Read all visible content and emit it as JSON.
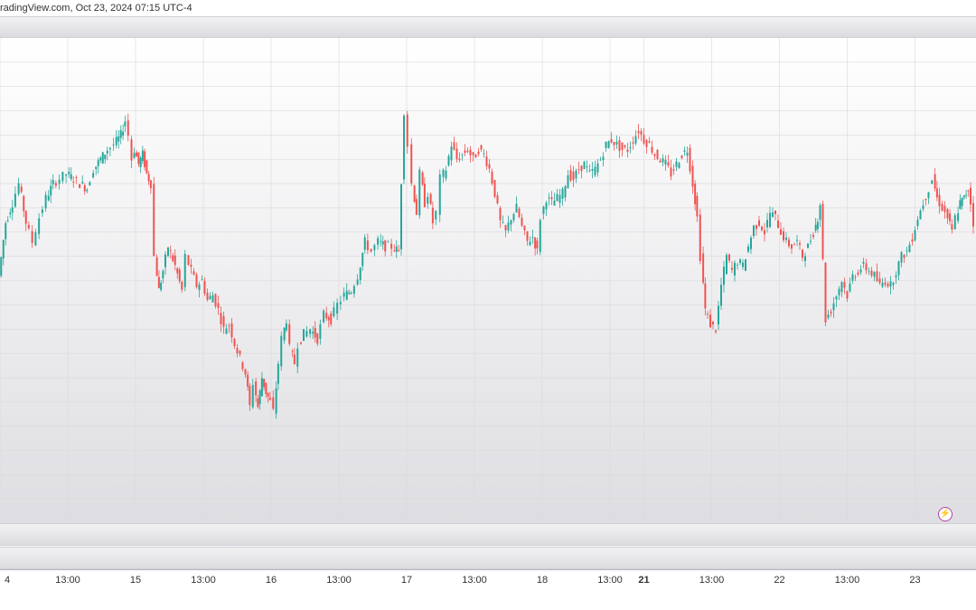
{
  "header": {
    "source_text": "radingView.com, Oct 23, 2024 07:15 UTC-4"
  },
  "colors": {
    "up": "#26a69a",
    "down": "#ef5350",
    "grid": "#d9d9de"
  },
  "icons": {
    "lightning": "lightning-icon"
  },
  "chart_data": {
    "type": "candlestick",
    "title": "",
    "xlabel": "",
    "ylabel": "",
    "ylim": [
      0,
      100
    ],
    "grid": true,
    "x_ticks": [
      {
        "label": "4",
        "x": 0,
        "bold": false
      },
      {
        "label": "13:00",
        "x": 0.5,
        "bold": false
      },
      {
        "label": "15",
        "x": 1,
        "bold": false
      },
      {
        "label": "13:00",
        "x": 1.5,
        "bold": false
      },
      {
        "label": "16",
        "x": 2,
        "bold": false
      },
      {
        "label": "13:00",
        "x": 2.5,
        "bold": false
      },
      {
        "label": "17",
        "x": 3,
        "bold": false
      },
      {
        "label": "13:00",
        "x": 3.5,
        "bold": false
      },
      {
        "label": "18",
        "x": 4,
        "bold": false
      },
      {
        "label": "13:00",
        "x": 4.5,
        "bold": false
      },
      {
        "label": "21",
        "x": 4.75,
        "bold": true
      },
      {
        "label": "13:00",
        "x": 5.25,
        "bold": false
      },
      {
        "label": "22",
        "x": 5.75,
        "bold": false
      },
      {
        "label": "13:00",
        "x": 6.25,
        "bold": false
      },
      {
        "label": "23",
        "x": 6.75,
        "bold": false
      }
    ],
    "series": [
      {
        "values": [
          {
            "x": 0.0,
            "y": 51
          },
          {
            "x": 0.05,
            "y": 62
          },
          {
            "x": 0.1,
            "y": 66
          },
          {
            "x": 0.15,
            "y": 70
          },
          {
            "x": 0.2,
            "y": 62
          },
          {
            "x": 0.25,
            "y": 58
          },
          {
            "x": 0.3,
            "y": 63
          },
          {
            "x": 0.35,
            "y": 67
          },
          {
            "x": 0.4,
            "y": 70
          },
          {
            "x": 0.45,
            "y": 71
          },
          {
            "x": 0.5,
            "y": 72
          },
          {
            "x": 0.55,
            "y": 71
          },
          {
            "x": 0.6,
            "y": 70
          },
          {
            "x": 0.65,
            "y": 69
          },
          {
            "x": 0.7,
            "y": 73
          },
          {
            "x": 0.75,
            "y": 75
          },
          {
            "x": 0.8,
            "y": 77
          },
          {
            "x": 0.85,
            "y": 78
          },
          {
            "x": 0.9,
            "y": 80
          },
          {
            "x": 0.93,
            "y": 83
          },
          {
            "x": 0.96,
            "y": 80
          },
          {
            "x": 0.98,
            "y": 75
          },
          {
            "x": 1.0,
            "y": 77
          },
          {
            "x": 1.03,
            "y": 74
          },
          {
            "x": 1.06,
            "y": 76
          },
          {
            "x": 1.09,
            "y": 72
          },
          {
            "x": 1.12,
            "y": 70
          },
          {
            "x": 1.15,
            "y": 55
          },
          {
            "x": 1.18,
            "y": 48
          },
          {
            "x": 1.21,
            "y": 52
          },
          {
            "x": 1.25,
            "y": 57
          },
          {
            "x": 1.3,
            "y": 53
          },
          {
            "x": 1.35,
            "y": 48
          },
          {
            "x": 1.38,
            "y": 55
          },
          {
            "x": 1.42,
            "y": 52
          },
          {
            "x": 1.46,
            "y": 49
          },
          {
            "x": 1.5,
            "y": 50
          },
          {
            "x": 1.54,
            "y": 46
          },
          {
            "x": 1.58,
            "y": 47
          },
          {
            "x": 1.62,
            "y": 44
          },
          {
            "x": 1.66,
            "y": 40
          },
          {
            "x": 1.7,
            "y": 41
          },
          {
            "x": 1.74,
            "y": 37
          },
          {
            "x": 1.78,
            "y": 34
          },
          {
            "x": 1.82,
            "y": 31
          },
          {
            "x": 1.85,
            "y": 24
          },
          {
            "x": 1.88,
            "y": 29
          },
          {
            "x": 1.91,
            "y": 24
          },
          {
            "x": 1.94,
            "y": 30
          },
          {
            "x": 1.97,
            "y": 27
          },
          {
            "x": 2.0,
            "y": 25
          },
          {
            "x": 2.03,
            "y": 23
          },
          {
            "x": 2.06,
            "y": 33
          },
          {
            "x": 2.09,
            "y": 38
          },
          {
            "x": 2.12,
            "y": 42
          },
          {
            "x": 2.15,
            "y": 36
          },
          {
            "x": 2.18,
            "y": 33
          },
          {
            "x": 2.21,
            "y": 37
          },
          {
            "x": 2.25,
            "y": 39
          },
          {
            "x": 2.3,
            "y": 40
          },
          {
            "x": 2.35,
            "y": 38
          },
          {
            "x": 2.4,
            "y": 43
          },
          {
            "x": 2.45,
            "y": 42
          },
          {
            "x": 2.5,
            "y": 45
          },
          {
            "x": 2.55,
            "y": 47
          },
          {
            "x": 2.6,
            "y": 48
          },
          {
            "x": 2.65,
            "y": 51
          },
          {
            "x": 2.7,
            "y": 58
          },
          {
            "x": 2.75,
            "y": 56
          },
          {
            "x": 2.8,
            "y": 58
          },
          {
            "x": 2.85,
            "y": 57
          },
          {
            "x": 2.9,
            "y": 57
          },
          {
            "x": 2.95,
            "y": 56
          },
          {
            "x": 2.99,
            "y": 85
          },
          {
            "x": 3.02,
            "y": 78
          },
          {
            "x": 3.05,
            "y": 70
          },
          {
            "x": 3.08,
            "y": 64
          },
          {
            "x": 3.11,
            "y": 72
          },
          {
            "x": 3.14,
            "y": 66
          },
          {
            "x": 3.17,
            "y": 68
          },
          {
            "x": 3.2,
            "y": 62
          },
          {
            "x": 3.23,
            "y": 64
          },
          {
            "x": 3.26,
            "y": 71
          },
          {
            "x": 3.3,
            "y": 73
          },
          {
            "x": 3.34,
            "y": 78
          },
          {
            "x": 3.38,
            "y": 75
          },
          {
            "x": 3.42,
            "y": 76
          },
          {
            "x": 3.46,
            "y": 77
          },
          {
            "x": 3.5,
            "y": 75
          },
          {
            "x": 3.54,
            "y": 77
          },
          {
            "x": 3.58,
            "y": 76
          },
          {
            "x": 3.62,
            "y": 73
          },
          {
            "x": 3.66,
            "y": 68
          },
          {
            "x": 3.7,
            "y": 62
          },
          {
            "x": 3.74,
            "y": 60
          },
          {
            "x": 3.78,
            "y": 63
          },
          {
            "x": 3.82,
            "y": 65
          },
          {
            "x": 3.86,
            "y": 61
          },
          {
            "x": 3.9,
            "y": 58
          },
          {
            "x": 3.94,
            "y": 59
          },
          {
            "x": 3.97,
            "y": 56
          },
          {
            "x": 4.0,
            "y": 63
          },
          {
            "x": 4.04,
            "y": 67
          },
          {
            "x": 4.08,
            "y": 66
          },
          {
            "x": 4.12,
            "y": 67
          },
          {
            "x": 4.16,
            "y": 68
          },
          {
            "x": 4.2,
            "y": 72
          },
          {
            "x": 4.24,
            "y": 71
          },
          {
            "x": 4.28,
            "y": 73
          },
          {
            "x": 4.32,
            "y": 74
          },
          {
            "x": 4.36,
            "y": 72
          },
          {
            "x": 4.4,
            "y": 73
          },
          {
            "x": 4.44,
            "y": 75
          },
          {
            "x": 4.48,
            "y": 78
          },
          {
            "x": 4.52,
            "y": 79
          },
          {
            "x": 4.56,
            "y": 78
          },
          {
            "x": 4.6,
            "y": 77
          },
          {
            "x": 4.64,
            "y": 77
          },
          {
            "x": 4.68,
            "y": 79
          },
          {
            "x": 4.72,
            "y": 81
          },
          {
            "x": 4.76,
            "y": 79
          },
          {
            "x": 4.8,
            "y": 78
          },
          {
            "x": 4.84,
            "y": 76
          },
          {
            "x": 4.88,
            "y": 75
          },
          {
            "x": 4.92,
            "y": 74
          },
          {
            "x": 4.96,
            "y": 72
          },
          {
            "x": 5.0,
            "y": 74
          },
          {
            "x": 5.04,
            "y": 76
          },
          {
            "x": 5.08,
            "y": 77
          },
          {
            "x": 5.12,
            "y": 70
          },
          {
            "x": 5.15,
            "y": 63
          },
          {
            "x": 5.18,
            "y": 55
          },
          {
            "x": 5.21,
            "y": 44
          },
          {
            "x": 5.25,
            "y": 41
          },
          {
            "x": 5.29,
            "y": 40
          },
          {
            "x": 5.33,
            "y": 49
          },
          {
            "x": 5.37,
            "y": 55
          },
          {
            "x": 5.41,
            "y": 52
          },
          {
            "x": 5.45,
            "y": 54
          },
          {
            "x": 5.49,
            "y": 53
          },
          {
            "x": 5.53,
            "y": 57
          },
          {
            "x": 5.57,
            "y": 61
          },
          {
            "x": 5.61,
            "y": 62
          },
          {
            "x": 5.65,
            "y": 60
          },
          {
            "x": 5.69,
            "y": 64
          },
          {
            "x": 5.73,
            "y": 63
          },
          {
            "x": 5.77,
            "y": 60
          },
          {
            "x": 5.81,
            "y": 58
          },
          {
            "x": 5.85,
            "y": 57
          },
          {
            "x": 5.89,
            "y": 58
          },
          {
            "x": 5.93,
            "y": 55
          },
          {
            "x": 5.97,
            "y": 57
          },
          {
            "x": 6.01,
            "y": 60
          },
          {
            "x": 6.04,
            "y": 63
          },
          {
            "x": 6.06,
            "y": 66
          },
          {
            "x": 6.1,
            "y": 42
          },
          {
            "x": 6.14,
            "y": 44
          },
          {
            "x": 6.18,
            "y": 47
          },
          {
            "x": 6.22,
            "y": 50
          },
          {
            "x": 6.26,
            "y": 47
          },
          {
            "x": 6.3,
            "y": 51
          },
          {
            "x": 6.34,
            "y": 52
          },
          {
            "x": 6.38,
            "y": 53
          },
          {
            "x": 6.42,
            "y": 52
          },
          {
            "x": 6.46,
            "y": 51
          },
          {
            "x": 6.5,
            "y": 49
          },
          {
            "x": 6.54,
            "y": 50
          },
          {
            "x": 6.58,
            "y": 49
          },
          {
            "x": 6.62,
            "y": 52
          },
          {
            "x": 6.66,
            "y": 55
          },
          {
            "x": 6.7,
            "y": 56
          },
          {
            "x": 6.74,
            "y": 59
          },
          {
            "x": 6.78,
            "y": 63
          },
          {
            "x": 6.82,
            "y": 66
          },
          {
            "x": 6.86,
            "y": 69
          },
          {
            "x": 6.89,
            "y": 71
          },
          {
            "x": 6.92,
            "y": 67
          },
          {
            "x": 6.96,
            "y": 65
          },
          {
            "x": 7.0,
            "y": 63
          },
          {
            "x": 7.03,
            "y": 60
          },
          {
            "x": 7.06,
            "y": 63
          },
          {
            "x": 7.09,
            "y": 66
          },
          {
            "x": 7.12,
            "y": 67
          },
          {
            "x": 7.15,
            "y": 69
          },
          {
            "x": 7.17,
            "y": 66
          },
          {
            "x": 7.19,
            "y": 62
          }
        ]
      }
    ]
  }
}
